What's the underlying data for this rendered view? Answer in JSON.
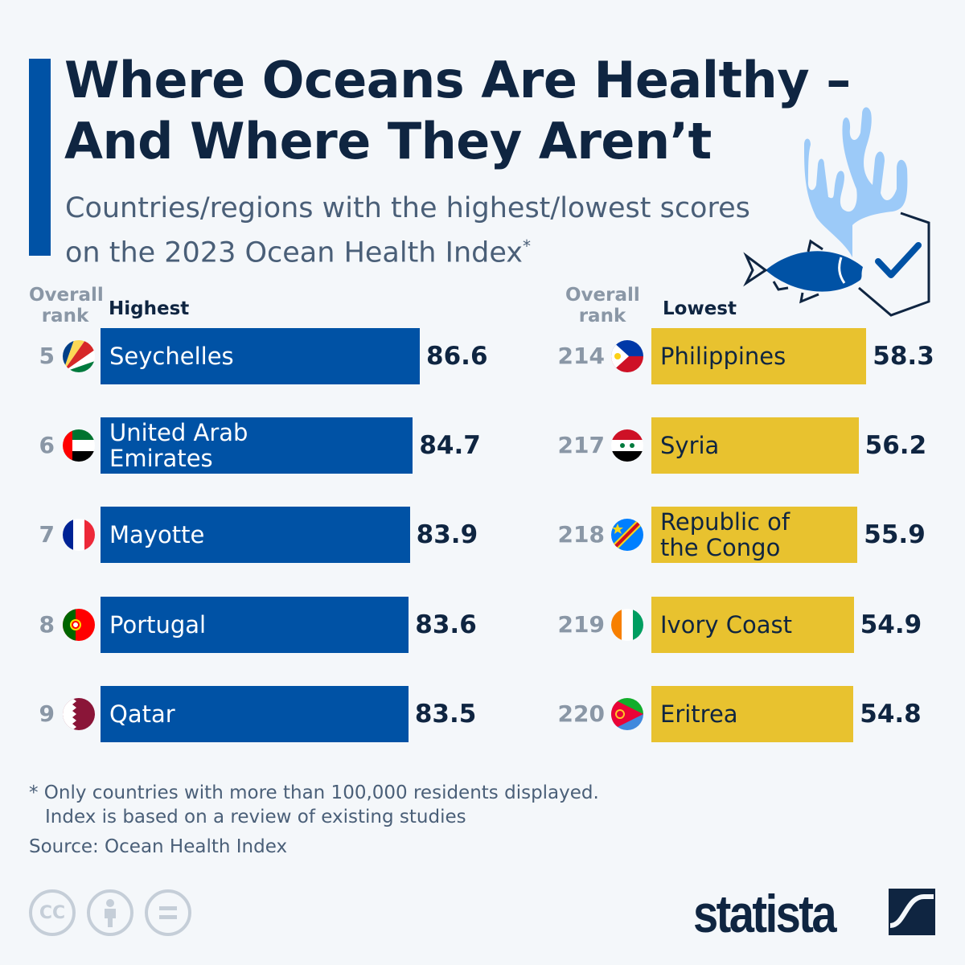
{
  "title": "Where Oceans Are Healthy – And Where They Aren’t",
  "title_line1": "Where Oceans Are Healthy –",
  "title_line2": "And Where They Aren’t",
  "subtitle": "Countries/regions with the highest/lowest scores on the 2023 Ocean Health Index",
  "subtitle_line1": "Countries/regions with the highest/lowest scores",
  "subtitle_line2": "on the 2023 Ocean Health Index",
  "subtitle_mark": "*",
  "colors": {
    "highest": "#0052a5",
    "lowest": "#e8c22f",
    "text": "#0f2541",
    "rank": "#8a97a6",
    "background": "#f4f7fa"
  },
  "chart_data": [
    {
      "type": "bar",
      "orientation": "horizontal",
      "title": "Highest",
      "rank_header": "Overall rank",
      "categories": [
        "Seychelles",
        "United Arab Emirates",
        "Mayotte",
        "Portugal",
        "Qatar"
      ],
      "ranks": [
        5,
        6,
        7,
        8,
        9
      ],
      "values": [
        86.6,
        84.7,
        83.9,
        83.6,
        83.5
      ],
      "color": "#0052a5"
    },
    {
      "type": "bar",
      "orientation": "horizontal",
      "title": "Lowest",
      "rank_header": "Overall rank",
      "categories": [
        "Philippines",
        "Syria",
        "Republic of the Congo",
        "Ivory Coast",
        "Eritrea"
      ],
      "ranks": [
        214,
        217,
        218,
        219,
        220
      ],
      "values": [
        58.3,
        56.2,
        55.9,
        54.9,
        54.8
      ],
      "color": "#e8c22f"
    }
  ],
  "rank_header_line1": "Overall",
  "rank_header_line2": "rank",
  "footnote_line1": "* Only countries with more than 100,000 residents displayed.",
  "footnote_line2": "Index is based on a review of existing studies",
  "source": "Source: Ocean Health Index",
  "license_icons": [
    "cc-icon",
    "attribution-icon",
    "no-derivatives-icon"
  ],
  "license_cc": "cc",
  "logo": "statista"
}
